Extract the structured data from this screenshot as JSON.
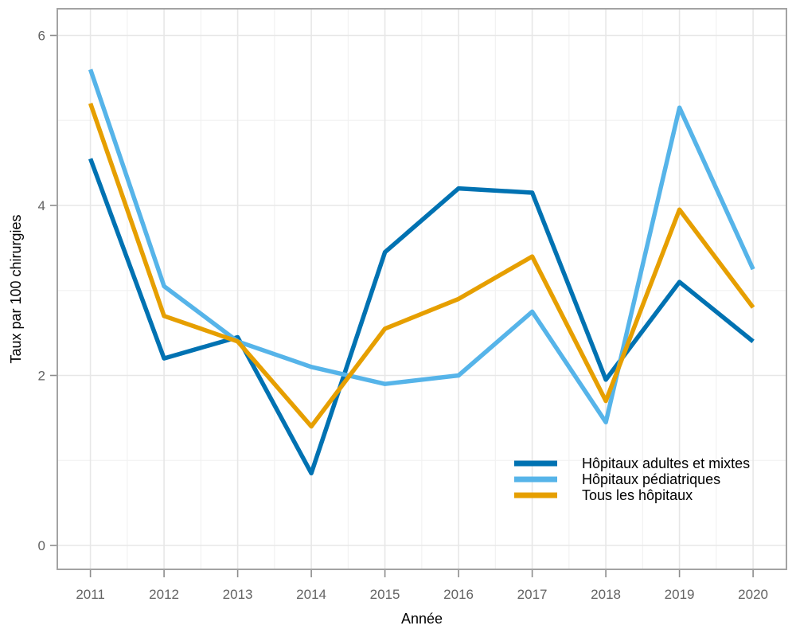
{
  "chart_data": {
    "type": "line",
    "title": "",
    "xlabel": "Année",
    "ylabel": "Taux par 100 chirurgies",
    "x": [
      2011,
      2012,
      2013,
      2014,
      2015,
      2016,
      2017,
      2018,
      2019,
      2020
    ],
    "ylim": [
      0,
      6
    ],
    "y_major_ticks": [
      0,
      2,
      4,
      6
    ],
    "y_minor_ticks": [
      1,
      3,
      5
    ],
    "grid": true,
    "legend_position": "inside-bottom-right",
    "series": [
      {
        "id": "adultes",
        "name": "Hôpitaux adultes et mixtes",
        "color": "#0072B2",
        "values": [
          4.55,
          2.2,
          2.45,
          0.85,
          3.45,
          4.2,
          4.15,
          1.95,
          3.1,
          2.4
        ]
      },
      {
        "id": "pediatriques",
        "name": "Hôpitaux pédiatriques",
        "color": "#56B4E9",
        "values": [
          5.6,
          3.05,
          2.4,
          2.1,
          1.9,
          2.0,
          2.75,
          1.45,
          5.15,
          3.25
        ]
      },
      {
        "id": "tous",
        "name": "Tous les hôpitaux",
        "color": "#E69F00",
        "values": [
          5.2,
          2.7,
          2.4,
          1.4,
          2.55,
          2.9,
          3.4,
          1.7,
          3.95,
          2.8
        ]
      }
    ]
  },
  "colors": {
    "background": "#ffffff",
    "panel_background": "#ffffff",
    "panel_border": "#a3a3a3",
    "grid_major": "#e7e7e7",
    "grid_minor": "#f2f2f2",
    "tick_mark": "#8c8c8c",
    "tick_label": "#636363",
    "axis_title": "#000000",
    "legend_text": "#000000"
  }
}
